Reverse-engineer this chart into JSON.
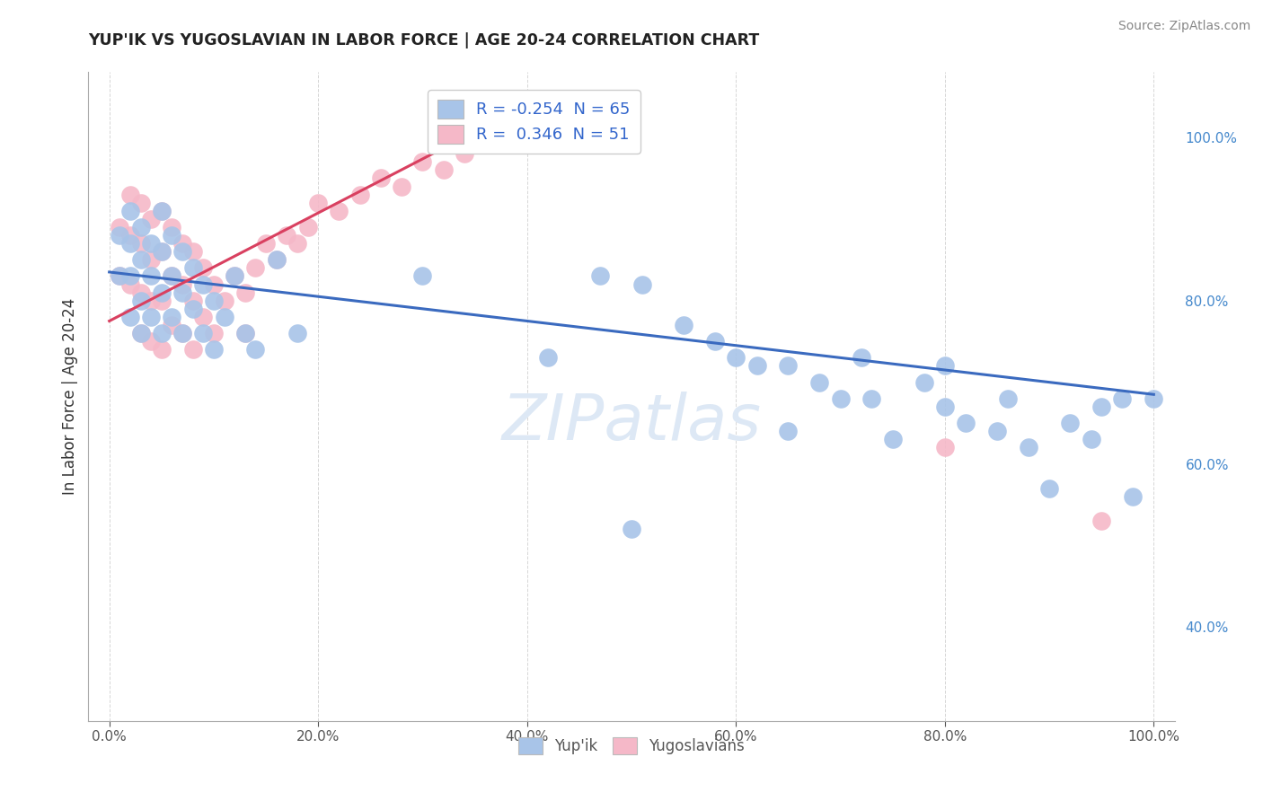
{
  "title": "YUP'IK VS YUGOSLAVIAN IN LABOR FORCE | AGE 20-24 CORRELATION CHART",
  "source": "Source: ZipAtlas.com",
  "ylabel": "In Labor Force | Age 20-24",
  "legend_label1": "Yup'ik",
  "legend_label2": "Yugoslavians",
  "R1": -0.254,
  "N1": 65,
  "R2": 0.346,
  "N2": 51,
  "blue_color": "#a8c4e8",
  "pink_color": "#f5b8c8",
  "blue_line_color": "#3a6abf",
  "pink_line_color": "#d94060",
  "background_color": "#ffffff",
  "grid_color": "#cccccc",
  "xlim": [
    -0.02,
    1.02
  ],
  "ylim": [
    0.285,
    1.08
  ],
  "blue_x": [
    0.01,
    0.01,
    0.02,
    0.02,
    0.02,
    0.02,
    0.03,
    0.03,
    0.03,
    0.03,
    0.04,
    0.04,
    0.04,
    0.05,
    0.05,
    0.05,
    0.05,
    0.06,
    0.06,
    0.06,
    0.07,
    0.07,
    0.07,
    0.08,
    0.08,
    0.09,
    0.09,
    0.1,
    0.1,
    0.11,
    0.12,
    0.13,
    0.14,
    0.16,
    0.18,
    0.3,
    0.42,
    0.47,
    0.5,
    0.51,
    0.55,
    0.58,
    0.6,
    0.62,
    0.65,
    0.65,
    0.68,
    0.7,
    0.72,
    0.73,
    0.75,
    0.78,
    0.8,
    0.8,
    0.82,
    0.85,
    0.86,
    0.88,
    0.9,
    0.92,
    0.94,
    0.95,
    0.97,
    0.98,
    1.0
  ],
  "blue_y": [
    0.88,
    0.83,
    0.91,
    0.87,
    0.83,
    0.78,
    0.89,
    0.85,
    0.8,
    0.76,
    0.87,
    0.83,
    0.78,
    0.91,
    0.86,
    0.81,
    0.76,
    0.88,
    0.83,
    0.78,
    0.86,
    0.81,
    0.76,
    0.84,
    0.79,
    0.82,
    0.76,
    0.8,
    0.74,
    0.78,
    0.83,
    0.76,
    0.74,
    0.85,
    0.76,
    0.83,
    0.73,
    0.83,
    0.52,
    0.82,
    0.77,
    0.75,
    0.73,
    0.72,
    0.72,
    0.64,
    0.7,
    0.68,
    0.73,
    0.68,
    0.63,
    0.7,
    0.67,
    0.72,
    0.65,
    0.64,
    0.68,
    0.62,
    0.57,
    0.65,
    0.63,
    0.67,
    0.68,
    0.56,
    0.68
  ],
  "pink_x": [
    0.01,
    0.01,
    0.02,
    0.02,
    0.02,
    0.03,
    0.03,
    0.03,
    0.03,
    0.04,
    0.04,
    0.04,
    0.04,
    0.05,
    0.05,
    0.05,
    0.05,
    0.06,
    0.06,
    0.06,
    0.07,
    0.07,
    0.07,
    0.08,
    0.08,
    0.08,
    0.09,
    0.09,
    0.1,
    0.1,
    0.11,
    0.12,
    0.13,
    0.13,
    0.14,
    0.15,
    0.16,
    0.17,
    0.18,
    0.19,
    0.2,
    0.22,
    0.24,
    0.26,
    0.28,
    0.3,
    0.32,
    0.34,
    0.36,
    0.8,
    0.95
  ],
  "pink_y": [
    0.89,
    0.83,
    0.93,
    0.88,
    0.82,
    0.92,
    0.87,
    0.81,
    0.76,
    0.9,
    0.85,
    0.8,
    0.75,
    0.91,
    0.86,
    0.8,
    0.74,
    0.89,
    0.83,
    0.77,
    0.87,
    0.82,
    0.76,
    0.86,
    0.8,
    0.74,
    0.84,
    0.78,
    0.82,
    0.76,
    0.8,
    0.83,
    0.81,
    0.76,
    0.84,
    0.87,
    0.85,
    0.88,
    0.87,
    0.89,
    0.92,
    0.91,
    0.93,
    0.95,
    0.94,
    0.97,
    0.96,
    0.98,
    1.0,
    0.62,
    0.53
  ],
  "blue_line_x": [
    0.0,
    1.0
  ],
  "blue_line_y": [
    0.835,
    0.685
  ],
  "pink_line_x": [
    0.0,
    0.37
  ],
  "pink_line_y": [
    0.775,
    1.02
  ],
  "xticks": [
    0.0,
    0.2,
    0.4,
    0.6,
    0.8,
    1.0
  ],
  "yticks_right": [
    0.4,
    0.6,
    0.8,
    1.0
  ]
}
